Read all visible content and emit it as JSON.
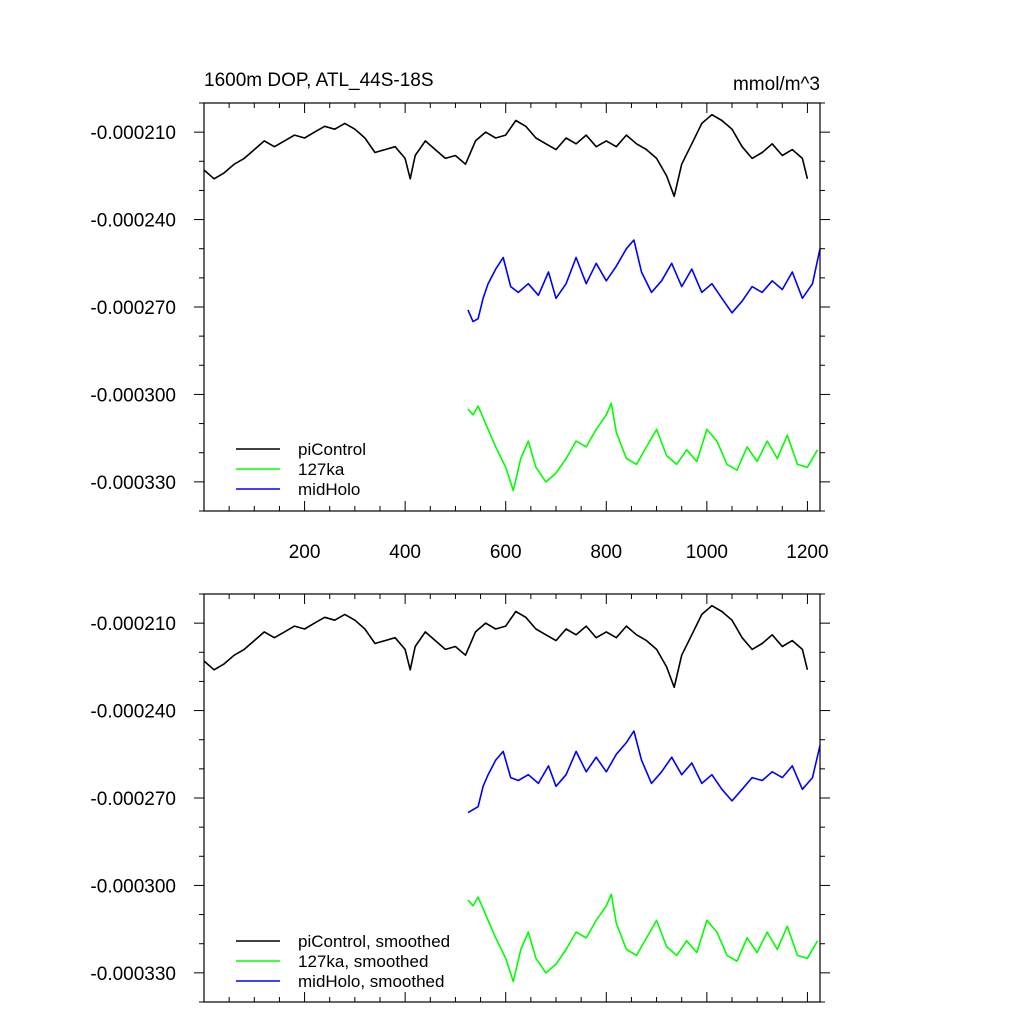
{
  "colors": {
    "piControl": "#000000",
    "127ka": "#00ff00",
    "midHolo": "#0000ff"
  },
  "chart_data": [
    {
      "type": "line",
      "title": "1600m DOP, ATL_44S-18S",
      "units_label": "mmol/m^3",
      "smoothed": false,
      "xlim": [
        0,
        1225
      ],
      "ylim": [
        -0.00034,
        -0.0002
      ],
      "x_ticks": [
        200,
        400,
        600,
        800,
        1000,
        1200
      ],
      "x_tick_labels": [
        "200",
        "400",
        "600",
        "800",
        "1000",
        "1200"
      ],
      "y_ticks": [
        -0.00021,
        -0.00024,
        -0.00027,
        -0.0003,
        -0.00033
      ],
      "y_tick_labels": [
        "-0.000210",
        "-0.000240",
        "-0.000270",
        "-0.000300",
        "-0.000330"
      ],
      "grid": false,
      "legend_position": "bottom-left",
      "legend": [
        "piControl",
        "127ka",
        "midHolo"
      ],
      "series": [
        {
          "name": "piControl",
          "color_key": "piControl",
          "x": [
            0,
            20,
            40,
            60,
            80,
            100,
            120,
            140,
            160,
            180,
            200,
            220,
            240,
            260,
            280,
            300,
            320,
            340,
            360,
            380,
            400,
            410,
            420,
            440,
            460,
            480,
            500,
            520,
            540,
            560,
            580,
            600,
            620,
            640,
            660,
            680,
            700,
            720,
            740,
            760,
            780,
            800,
            820,
            840,
            860,
            880,
            900,
            920,
            935,
            950,
            970,
            990,
            1010,
            1030,
            1050,
            1070,
            1090,
            1110,
            1130,
            1150,
            1170,
            1190,
            1200
          ],
          "y": [
            -0.000223,
            -0.000226,
            -0.000224,
            -0.000221,
            -0.000219,
            -0.000216,
            -0.000213,
            -0.000215,
            -0.000213,
            -0.000211,
            -0.000212,
            -0.00021,
            -0.000208,
            -0.000209,
            -0.000207,
            -0.000209,
            -0.000212,
            -0.000217,
            -0.000216,
            -0.000215,
            -0.000219,
            -0.000226,
            -0.000218,
            -0.000213,
            -0.000216,
            -0.000219,
            -0.000218,
            -0.000221,
            -0.000213,
            -0.00021,
            -0.000212,
            -0.000211,
            -0.000206,
            -0.000208,
            -0.000212,
            -0.000214,
            -0.000216,
            -0.000212,
            -0.000214,
            -0.000211,
            -0.000215,
            -0.000213,
            -0.000215,
            -0.000211,
            -0.000214,
            -0.000216,
            -0.000219,
            -0.000225,
            -0.000232,
            -0.000221,
            -0.000214,
            -0.000207,
            -0.000204,
            -0.000206,
            -0.000209,
            -0.000215,
            -0.000219,
            -0.000217,
            -0.000214,
            -0.000218,
            -0.000216,
            -0.000219,
            -0.000226
          ]
        },
        {
          "name": "127ka",
          "color_key": "127ka",
          "x": [
            525,
            535,
            545,
            555,
            565,
            580,
            600,
            615,
            630,
            645,
            660,
            680,
            700,
            720,
            740,
            760,
            780,
            800,
            810,
            820,
            840,
            860,
            880,
            900,
            920,
            940,
            960,
            980,
            1000,
            1020,
            1040,
            1060,
            1080,
            1100,
            1120,
            1140,
            1160,
            1180,
            1200,
            1220
          ],
          "y": [
            -0.000305,
            -0.000307,
            -0.000304,
            -0.000308,
            -0.000312,
            -0.000318,
            -0.000325,
            -0.000333,
            -0.000322,
            -0.000316,
            -0.000325,
            -0.00033,
            -0.000327,
            -0.000322,
            -0.000316,
            -0.000318,
            -0.000312,
            -0.000307,
            -0.000303,
            -0.000313,
            -0.000322,
            -0.000324,
            -0.000318,
            -0.000312,
            -0.000321,
            -0.000324,
            -0.000319,
            -0.000323,
            -0.000312,
            -0.000316,
            -0.000324,
            -0.000326,
            -0.000318,
            -0.000323,
            -0.000316,
            -0.000322,
            -0.000314,
            -0.000324,
            -0.000325,
            -0.000319
          ]
        },
        {
          "name": "midHolo",
          "color_key": "midHolo",
          "x": [
            525,
            535,
            545,
            555,
            565,
            580,
            595,
            610,
            625,
            645,
            665,
            685,
            700,
            720,
            740,
            760,
            780,
            800,
            820,
            840,
            855,
            870,
            890,
            910,
            930,
            950,
            970,
            990,
            1010,
            1030,
            1050,
            1070,
            1090,
            1110,
            1130,
            1150,
            1170,
            1190,
            1210,
            1225
          ],
          "y": [
            -0.000271,
            -0.000275,
            -0.000274,
            -0.000267,
            -0.000262,
            -0.000257,
            -0.000253,
            -0.000263,
            -0.000265,
            -0.000262,
            -0.000266,
            -0.000258,
            -0.000267,
            -0.000262,
            -0.000253,
            -0.000262,
            -0.000255,
            -0.000261,
            -0.000256,
            -0.00025,
            -0.000247,
            -0.000258,
            -0.000265,
            -0.000261,
            -0.000255,
            -0.000263,
            -0.000257,
            -0.000265,
            -0.000262,
            -0.000267,
            -0.000272,
            -0.000268,
            -0.000263,
            -0.000265,
            -0.000261,
            -0.000264,
            -0.000258,
            -0.000267,
            -0.000262,
            -0.00025
          ]
        }
      ]
    },
    {
      "type": "line",
      "title": "",
      "units_label": "",
      "smoothed": true,
      "xlim": [
        0,
        1225
      ],
      "ylim": [
        -0.00034,
        -0.0002
      ],
      "x_ticks": [
        200,
        400,
        600,
        800,
        1000,
        1200
      ],
      "x_tick_labels": [],
      "y_ticks": [
        -0.00021,
        -0.00024,
        -0.00027,
        -0.0003,
        -0.00033
      ],
      "y_tick_labels": [
        "-0.000210",
        "-0.000240",
        "-0.000270",
        "-0.000300",
        "-0.000330"
      ],
      "grid": false,
      "legend_position": "bottom-left",
      "legend": [
        "piControl, smoothed",
        "127ka, smoothed",
        "midHolo, smoothed"
      ],
      "series": [
        {
          "name": "piControl, smoothed",
          "color_key": "piControl",
          "x": [
            0,
            20,
            40,
            60,
            80,
            100,
            120,
            140,
            160,
            180,
            200,
            220,
            240,
            260,
            280,
            300,
            320,
            340,
            360,
            380,
            400,
            410,
            420,
            440,
            460,
            480,
            500,
            520,
            540,
            560,
            580,
            600,
            620,
            640,
            660,
            680,
            700,
            720,
            740,
            760,
            780,
            800,
            820,
            840,
            860,
            880,
            900,
            920,
            935,
            950,
            970,
            990,
            1010,
            1030,
            1050,
            1070,
            1090,
            1110,
            1130,
            1150,
            1170,
            1190,
            1200
          ],
          "y": [
            -0.000223,
            -0.000226,
            -0.000224,
            -0.000221,
            -0.000219,
            -0.000216,
            -0.000213,
            -0.000215,
            -0.000213,
            -0.000211,
            -0.000212,
            -0.00021,
            -0.000208,
            -0.000209,
            -0.000207,
            -0.000209,
            -0.000212,
            -0.000217,
            -0.000216,
            -0.000215,
            -0.000219,
            -0.000226,
            -0.000218,
            -0.000213,
            -0.000216,
            -0.000219,
            -0.000218,
            -0.000221,
            -0.000213,
            -0.00021,
            -0.000212,
            -0.000211,
            -0.000206,
            -0.000208,
            -0.000212,
            -0.000214,
            -0.000216,
            -0.000212,
            -0.000214,
            -0.000211,
            -0.000215,
            -0.000213,
            -0.000215,
            -0.000211,
            -0.000214,
            -0.000216,
            -0.000219,
            -0.000225,
            -0.000232,
            -0.000221,
            -0.000214,
            -0.000207,
            -0.000204,
            -0.000206,
            -0.000209,
            -0.000215,
            -0.000219,
            -0.000217,
            -0.000214,
            -0.000218,
            -0.000216,
            -0.000219,
            -0.000226
          ]
        },
        {
          "name": "127ka, smoothed",
          "color_key": "127ka",
          "x": [
            525,
            535,
            545,
            555,
            565,
            580,
            600,
            615,
            630,
            645,
            660,
            680,
            700,
            720,
            740,
            760,
            780,
            800,
            810,
            820,
            840,
            860,
            880,
            900,
            920,
            940,
            960,
            980,
            1000,
            1020,
            1040,
            1060,
            1080,
            1100,
            1120,
            1140,
            1160,
            1180,
            1200,
            1220
          ],
          "y": [
            -0.000305,
            -0.000307,
            -0.000304,
            -0.000308,
            -0.000312,
            -0.000318,
            -0.000325,
            -0.000333,
            -0.000322,
            -0.000316,
            -0.000325,
            -0.00033,
            -0.000327,
            -0.000322,
            -0.000316,
            -0.000318,
            -0.000312,
            -0.000307,
            -0.000303,
            -0.000313,
            -0.000322,
            -0.000324,
            -0.000318,
            -0.000312,
            -0.000321,
            -0.000324,
            -0.000319,
            -0.000323,
            -0.000312,
            -0.000316,
            -0.000324,
            -0.000326,
            -0.000318,
            -0.000323,
            -0.000316,
            -0.000322,
            -0.000314,
            -0.000324,
            -0.000325,
            -0.000319
          ]
        },
        {
          "name": "midHolo, smoothed",
          "color_key": "midHolo",
          "x": [
            525,
            535,
            545,
            555,
            565,
            580,
            595,
            610,
            625,
            645,
            665,
            685,
            700,
            720,
            740,
            760,
            780,
            800,
            820,
            840,
            855,
            870,
            890,
            910,
            930,
            950,
            970,
            990,
            1010,
            1030,
            1050,
            1070,
            1090,
            1110,
            1130,
            1150,
            1170,
            1190,
            1210,
            1225
          ],
          "y": [
            -0.000275,
            -0.000274,
            -0.000273,
            -0.000266,
            -0.000262,
            -0.000257,
            -0.000254,
            -0.000263,
            -0.000264,
            -0.000262,
            -0.000265,
            -0.000259,
            -0.000266,
            -0.000262,
            -0.000254,
            -0.000261,
            -0.000256,
            -0.000261,
            -0.000255,
            -0.000251,
            -0.000247,
            -0.000257,
            -0.000265,
            -0.000261,
            -0.000256,
            -0.000262,
            -0.000258,
            -0.000265,
            -0.000262,
            -0.000267,
            -0.000271,
            -0.000267,
            -0.000263,
            -0.000264,
            -0.000261,
            -0.000263,
            -0.000259,
            -0.000267,
            -0.000263,
            -0.000252
          ]
        }
      ]
    }
  ]
}
